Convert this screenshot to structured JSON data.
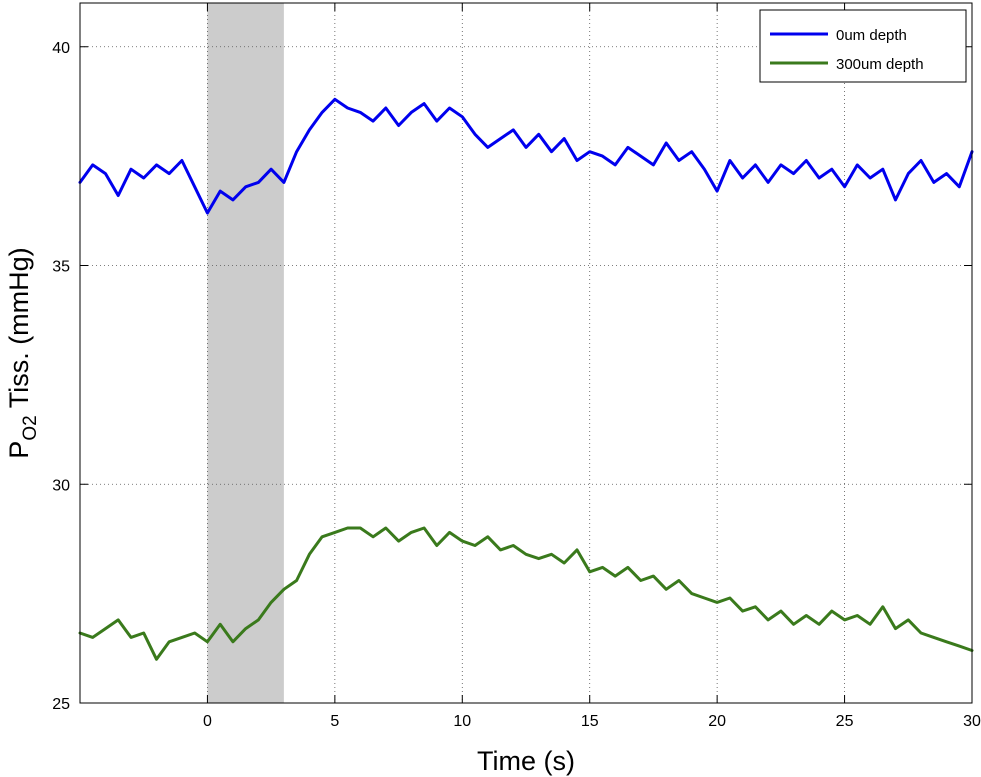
{
  "chart_data": {
    "type": "line",
    "title": "",
    "xlabel": "Time (s)",
    "ylabel": {
      "main": "P",
      "sub": "O2",
      "rest": " Tiss. (mmHg)"
    },
    "xlim": [
      -5,
      30
    ],
    "ylim": [
      25,
      41
    ],
    "xticks": [
      0,
      5,
      10,
      15,
      20,
      25,
      30
    ],
    "yticks": [
      25,
      30,
      35,
      40
    ],
    "grid": true,
    "legend_position": "top-right",
    "shaded_region": {
      "x0": 0,
      "x1": 3,
      "color": "#cccccc"
    },
    "series": [
      {
        "name": "0um depth",
        "color": "#0000ee",
        "x": [
          -5,
          -4.5,
          -4,
          -3.5,
          -3,
          -2.5,
          -2,
          -1.5,
          -1,
          -0.5,
          0,
          0.5,
          1,
          1.5,
          2,
          2.5,
          3,
          3.5,
          4,
          4.5,
          5,
          5.5,
          6,
          6.5,
          7,
          7.5,
          8,
          8.5,
          9,
          9.5,
          10,
          10.5,
          11,
          11.5,
          12,
          12.5,
          13,
          13.5,
          14,
          14.5,
          15,
          15.5,
          16,
          16.5,
          17,
          17.5,
          18,
          18.5,
          19,
          19.5,
          20,
          20.5,
          21,
          21.5,
          22,
          22.5,
          23,
          23.5,
          24,
          24.5,
          25,
          25.5,
          26,
          26.5,
          27,
          27.5,
          28,
          28.5,
          29,
          29.5,
          30
        ],
        "y": [
          36.9,
          37.3,
          37.1,
          36.6,
          37.2,
          37.0,
          37.3,
          37.1,
          37.4,
          36.8,
          36.2,
          36.7,
          36.5,
          36.8,
          36.9,
          37.2,
          36.9,
          37.6,
          38.1,
          38.5,
          38.8,
          38.6,
          38.5,
          38.3,
          38.6,
          38.2,
          38.5,
          38.7,
          38.3,
          38.6,
          38.4,
          38.0,
          37.7,
          37.9,
          38.1,
          37.7,
          38.0,
          37.6,
          37.9,
          37.4,
          37.6,
          37.5,
          37.3,
          37.7,
          37.5,
          37.3,
          37.8,
          37.4,
          37.6,
          37.2,
          36.7,
          37.4,
          37.0,
          37.3,
          36.9,
          37.3,
          37.1,
          37.4,
          37.0,
          37.2,
          36.8,
          37.3,
          37.0,
          37.2,
          36.5,
          37.1,
          37.4,
          36.9,
          37.1,
          36.8,
          37.6
        ]
      },
      {
        "name": "300um depth",
        "color": "#3a7a1c",
        "x": [
          -5,
          -4.5,
          -4,
          -3.5,
          -3,
          -2.5,
          -2,
          -1.5,
          -1,
          -0.5,
          0,
          0.5,
          1,
          1.5,
          2,
          2.5,
          3,
          3.5,
          4,
          4.5,
          5,
          5.5,
          6,
          6.5,
          7,
          7.5,
          8,
          8.5,
          9,
          9.5,
          10,
          10.5,
          11,
          11.5,
          12,
          12.5,
          13,
          13.5,
          14,
          14.5,
          15,
          15.5,
          16,
          16.5,
          17,
          17.5,
          18,
          18.5,
          19,
          19.5,
          20,
          20.5,
          21,
          21.5,
          22,
          22.5,
          23,
          23.5,
          24,
          24.5,
          25,
          25.5,
          26,
          26.5,
          27,
          27.5,
          28,
          28.5,
          29,
          29.5,
          30
        ],
        "y": [
          26.6,
          26.5,
          26.7,
          26.9,
          26.5,
          26.6,
          26.0,
          26.4,
          26.5,
          26.6,
          26.4,
          26.8,
          26.4,
          26.7,
          26.9,
          27.3,
          27.6,
          27.8,
          28.4,
          28.8,
          28.9,
          29.0,
          29.0,
          28.8,
          29.0,
          28.7,
          28.9,
          29.0,
          28.6,
          28.9,
          28.7,
          28.6,
          28.8,
          28.5,
          28.6,
          28.4,
          28.3,
          28.4,
          28.2,
          28.5,
          28.0,
          28.1,
          27.9,
          28.1,
          27.8,
          27.9,
          27.6,
          27.8,
          27.5,
          27.4,
          27.3,
          27.4,
          27.1,
          27.2,
          26.9,
          27.1,
          26.8,
          27.0,
          26.8,
          27.1,
          26.9,
          27.0,
          26.8,
          27.2,
          26.7,
          26.9,
          26.6,
          26.5,
          26.4,
          26.3,
          26.2
        ]
      }
    ]
  }
}
